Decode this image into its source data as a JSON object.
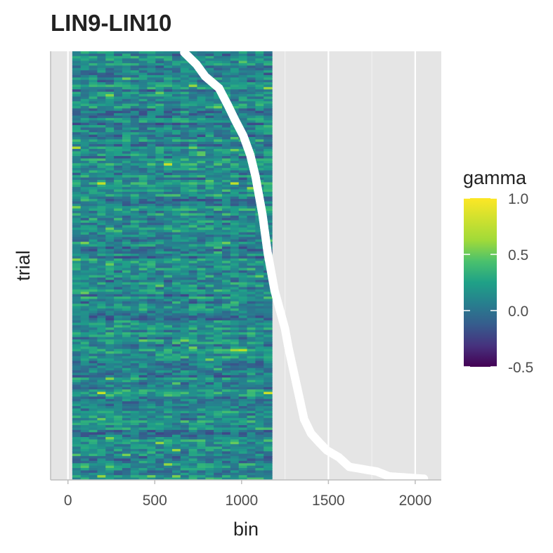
{
  "chart_data": {
    "type": "heatmap",
    "title": "LIN9-LIN10",
    "xlabel": "bin",
    "ylabel": "trial",
    "xlim": [
      -100,
      2150
    ],
    "x_ticks": [
      0,
      500,
      1000,
      1500,
      2000
    ],
    "x_tick_labels": [
      "0",
      "500",
      "1000",
      "1500",
      "2000"
    ],
    "heatmap": {
      "x_range": [
        25,
        1175
      ],
      "n_trials": 180,
      "value_range": [
        -0.5,
        1.0
      ],
      "colormap": "viridis"
    },
    "overlay": {
      "name": "trial end",
      "type": "scatter",
      "color": "#ffffff",
      "note": "sorted per-trial end bin, trial index counted from top",
      "points": [
        [
          670,
          0
        ],
        [
          740,
          5
        ],
        [
          790,
          10
        ],
        [
          870,
          15
        ],
        [
          920,
          22
        ],
        [
          960,
          28
        ],
        [
          1010,
          35
        ],
        [
          1050,
          43
        ],
        [
          1080,
          52
        ],
        [
          1100,
          60
        ],
        [
          1120,
          68
        ],
        [
          1135,
          76
        ],
        [
          1150,
          84
        ],
        [
          1170,
          92
        ],
        [
          1190,
          100
        ],
        [
          1220,
          108
        ],
        [
          1250,
          116
        ],
        [
          1270,
          124
        ],
        [
          1300,
          134
        ],
        [
          1330,
          144
        ],
        [
          1360,
          154
        ],
        [
          1400,
          160
        ],
        [
          1450,
          164
        ],
        [
          1490,
          167
        ],
        [
          1560,
          170
        ],
        [
          1620,
          174
        ],
        [
          1780,
          176
        ],
        [
          1850,
          178
        ],
        [
          2050,
          179
        ]
      ]
    },
    "legend": {
      "title": "gamma",
      "placement": "right",
      "ticks": [
        1.0,
        0.5,
        0.0,
        -0.5
      ],
      "tick_labels": [
        "1.0",
        "0.5",
        "0.0",
        "-0.5"
      ]
    }
  }
}
